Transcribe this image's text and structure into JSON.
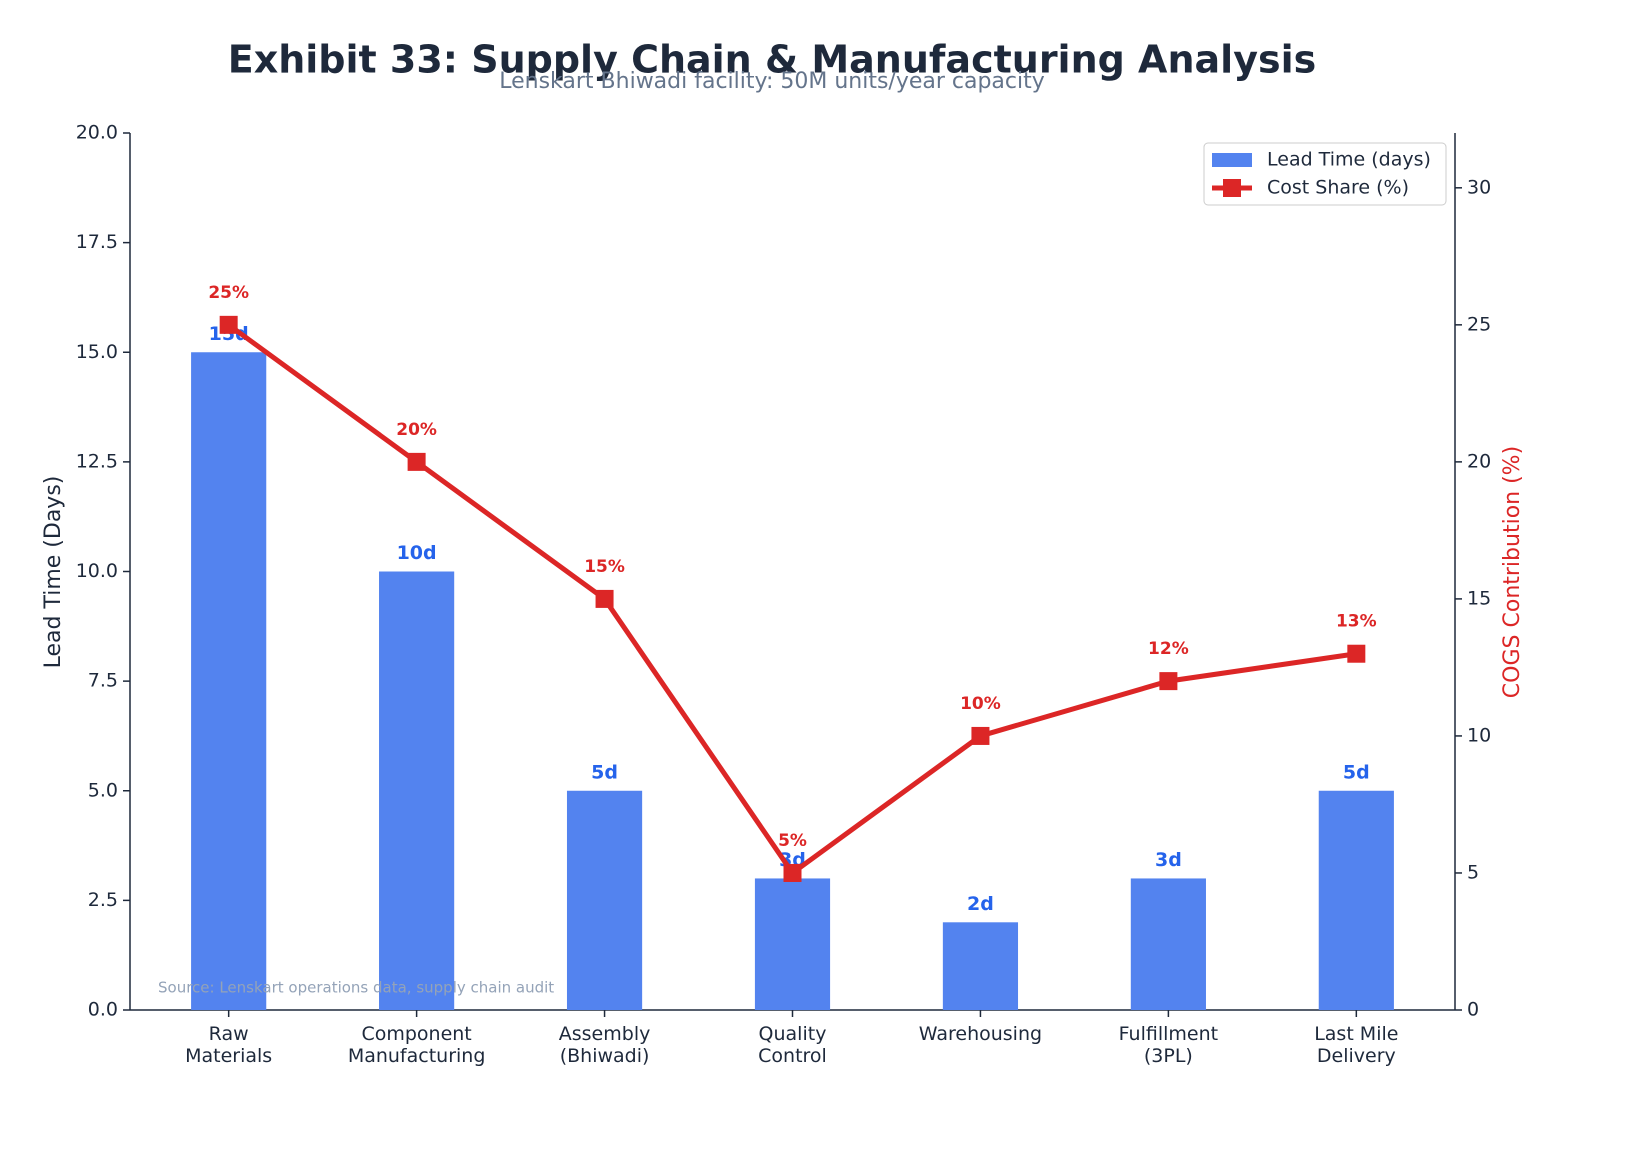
{
  "chart_data": {
    "type": "bar_line",
    "title": "Exhibit 33: Supply Chain & Manufacturing Analysis",
    "subtitle": "Lenskart Bhiwadi facility: 50M units/year capacity",
    "source": "Source: Lenskart operations data, supply chain audit",
    "ylabel": "Lead Time (Days)",
    "y2label": "COGS Contribution (%)",
    "categories": [
      "Raw\nMaterials",
      "Component\nManufacturing",
      "Assembly\n(Bhiwadi)",
      "Quality\nControl",
      "Warehousing",
      "Fulfillment\n(3PL)",
      "Last Mile\nDelivery"
    ],
    "series": [
      {
        "name": "Lead Time (days)",
        "type": "bar",
        "color": "#5383ef",
        "label_color": "#2563eb",
        "values": [
          15,
          10,
          5,
          3,
          2,
          3,
          5
        ],
        "value_labels": [
          "15d",
          "10d",
          "5d",
          "3d",
          "2d",
          "3d",
          "5d"
        ]
      },
      {
        "name": "Cost Share (%)",
        "type": "line",
        "axis": "y2",
        "color": "#dc2626",
        "values": [
          25,
          20,
          15,
          5,
          10,
          12,
          13
        ],
        "value_labels": [
          "25%",
          "20%",
          "15%",
          "5%",
          "10%",
          "12%",
          "13%"
        ]
      }
    ],
    "ylim": [
      0,
      20
    ],
    "yticks": [
      {
        "value": 0,
        "label": "0.0"
      },
      2.5,
      {
        "value": 5,
        "label": "5.0"
      },
      7.5,
      {
        "value": 10,
        "label": "10.0"
      },
      12.5,
      {
        "value": 15,
        "label": "15.0"
      },
      17.5,
      {
        "value": 20,
        "label": "20.0"
      }
    ],
    "y2lim": [
      0,
      32
    ],
    "y2ticks": [
      0,
      5,
      10,
      15,
      20,
      25,
      30
    ],
    "legend": "upper right",
    "grid": false
  }
}
